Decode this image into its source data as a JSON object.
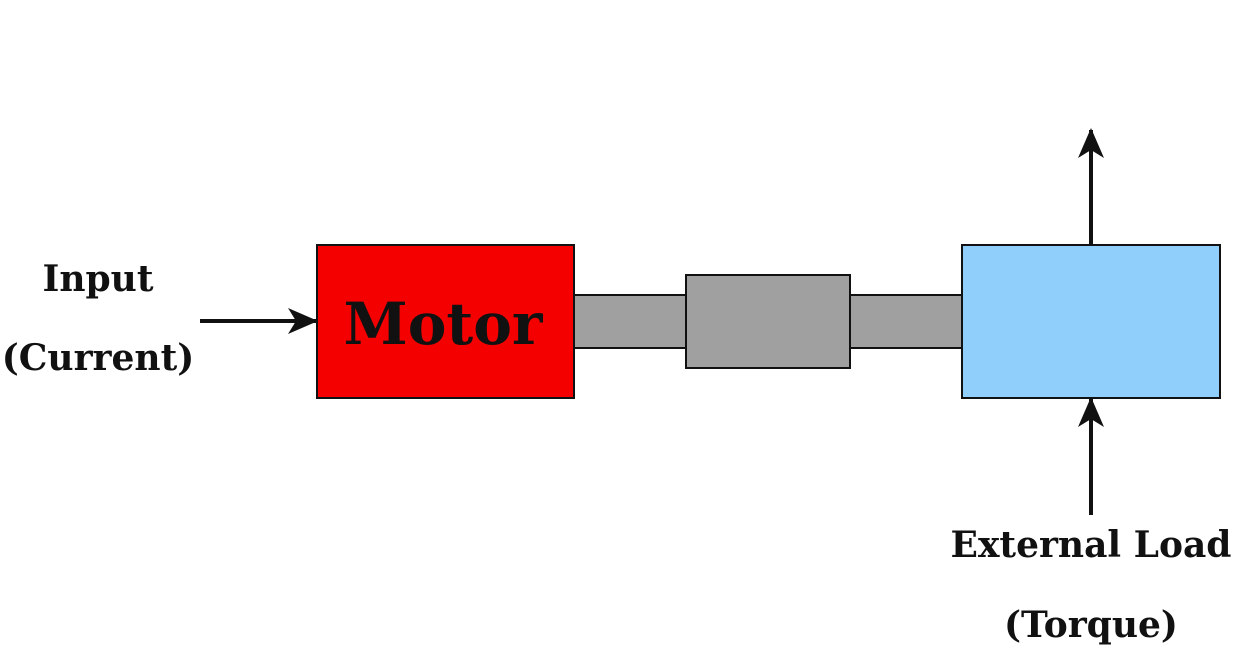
{
  "input": {
    "line1": "Input",
    "line2": "(Current)"
  },
  "motor": {
    "label": "Motor"
  },
  "external_load": {
    "line1": "External Load",
    "line2": "(Torque)"
  },
  "colors": {
    "motor_fill": "#f40000",
    "shaft_fill": "#a0a0a0",
    "load_fill": "#90cefc",
    "stroke": "#111111",
    "background": "#ffffff"
  }
}
